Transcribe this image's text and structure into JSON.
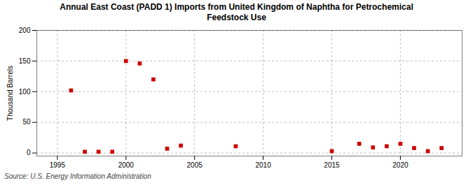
{
  "chart_data": {
    "type": "scatter",
    "title": "Annual East Coast (PADD 1) Imports from United Kingdom of Naphtha for Petrochemical\nFeedstock Use",
    "ylabel": "Thousand Barrels",
    "source": "Source: U.S. Energy Information Administration",
    "x": [
      1996,
      1997,
      1998,
      1999,
      2000,
      2001,
      2002,
      2003,
      2004,
      2008,
      2015,
      2017,
      2018,
      2019,
      2020,
      2021,
      2022,
      2023
    ],
    "values": [
      102,
      2,
      2,
      2,
      150,
      146,
      120,
      7,
      12,
      11,
      3,
      15,
      9,
      11,
      15,
      8,
      3,
      8
    ],
    "color": "#cc0000",
    "marker": "square",
    "xlim": [
      1993.5,
      2024.5
    ],
    "ylim": [
      -5,
      200
    ],
    "xticks": [
      1995,
      2000,
      2005,
      2010,
      2015,
      2020
    ],
    "yticks": [
      0,
      50,
      100,
      150,
      200
    ],
    "grid": true
  }
}
